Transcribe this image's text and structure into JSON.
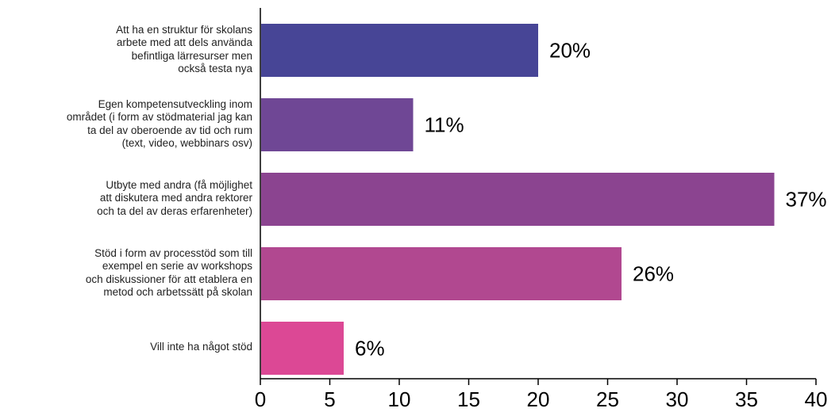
{
  "chart_data": {
    "type": "bar",
    "orientation": "horizontal",
    "categories": [
      [
        "Att ha en struktur för skolans",
        "arbete med att dels använda",
        "befintliga lärresurser men",
        "också testa nya"
      ],
      [
        "Egen kompetensutveckling inom",
        "området (i form av stödmaterial jag kan",
        "ta del av oberoende av tid och rum",
        "(text, video, webbinars osv)"
      ],
      [
        "Utbyte med andra (få möjlighet",
        "att diskutera med andra rektorer",
        "och ta del av deras erfarenheter)"
      ],
      [
        "Stöd i form av processtöd som till",
        "exempel en serie av workshops",
        "och diskussioner för att etablera en",
        "metod och arbetssätt på skolan"
      ],
      [
        "Vill inte ha något stöd"
      ]
    ],
    "values": [
      20,
      11,
      37,
      26,
      6
    ],
    "value_labels": [
      "20%",
      "11%",
      "37%",
      "26%",
      "6%"
    ],
    "xlim": [
      0,
      40
    ],
    "xticks": [
      "0",
      "5",
      "10",
      "15",
      "20",
      "25",
      "30",
      "35",
      "40"
    ],
    "grid": false,
    "colors": [
      "#474596",
      "#6f4795",
      "#8b4490",
      "#b14890",
      "#dc4895"
    ]
  }
}
